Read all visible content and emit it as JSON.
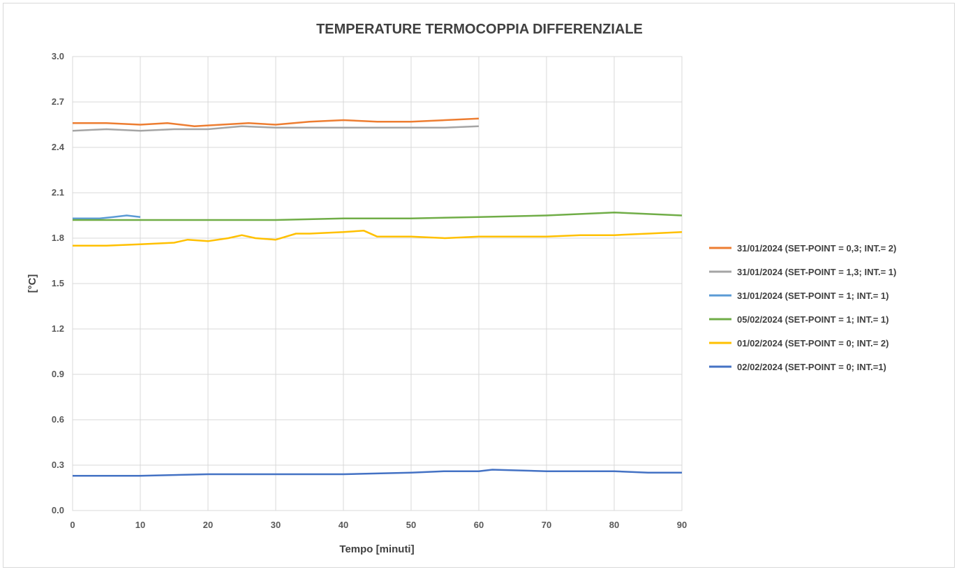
{
  "chart_data": {
    "type": "line",
    "title": "TEMPERATURE TERMOCOPPIA DIFFERENZIALE",
    "xlabel": "Tempo [minuti]",
    "ylabel": "[°C]",
    "xlim": [
      0,
      90
    ],
    "ylim": [
      0,
      3.0
    ],
    "x_ticks": [
      "0",
      "10",
      "20",
      "30",
      "40",
      "50",
      "60",
      "70",
      "80",
      "90"
    ],
    "y_ticks": [
      "0.0",
      "0.3",
      "0.6",
      "0.9",
      "1.2",
      "1.5",
      "1.8",
      "2.1",
      "2.4",
      "2.7",
      "3.0"
    ],
    "grid": true,
    "legend_position": "right",
    "series": [
      {
        "name": "31/01/2024 (SET-POINT = 0,3; INT.= 2)",
        "color": "#ED7D31",
        "x": [
          0,
          5,
          10,
          14,
          18,
          22,
          26,
          30,
          35,
          40,
          45,
          50,
          55,
          60
        ],
        "y": [
          2.56,
          2.56,
          2.55,
          2.56,
          2.54,
          2.55,
          2.56,
          2.55,
          2.57,
          2.58,
          2.57,
          2.57,
          2.58,
          2.59
        ]
      },
      {
        "name": "31/01/2024 (SET-POINT = 1,3; INT.= 1)",
        "color": "#A5A5A5",
        "x": [
          0,
          5,
          10,
          15,
          20,
          25,
          30,
          35,
          40,
          45,
          50,
          55,
          60
        ],
        "y": [
          2.51,
          2.52,
          2.51,
          2.52,
          2.52,
          2.54,
          2.53,
          2.53,
          2.53,
          2.53,
          2.53,
          2.53,
          2.54
        ]
      },
      {
        "name": "31/01/2024 (SET-POINT = 1; INT.= 1)",
        "color": "#5B9BD5",
        "x": [
          0,
          2,
          4,
          6,
          8,
          10
        ],
        "y": [
          1.93,
          1.93,
          1.93,
          1.94,
          1.95,
          1.94
        ]
      },
      {
        "name": "05/02/2024 (SET-POINT = 1; INT.= 1)",
        "color": "#70AD47",
        "x": [
          0,
          10,
          20,
          30,
          40,
          50,
          60,
          70,
          80,
          90
        ],
        "y": [
          1.92,
          1.92,
          1.92,
          1.92,
          1.93,
          1.93,
          1.94,
          1.95,
          1.97,
          1.95
        ]
      },
      {
        "name": "01/02/2024 (SET-POINT = 0; INT.= 2)",
        "color": "#FFC000",
        "x": [
          0,
          5,
          10,
          15,
          17,
          20,
          23,
          25,
          27,
          30,
          33,
          35,
          40,
          43,
          45,
          50,
          55,
          60,
          65,
          70,
          75,
          80,
          85,
          90
        ],
        "y": [
          1.75,
          1.75,
          1.76,
          1.77,
          1.79,
          1.78,
          1.8,
          1.82,
          1.8,
          1.79,
          1.83,
          1.83,
          1.84,
          1.85,
          1.81,
          1.81,
          1.8,
          1.81,
          1.81,
          1.81,
          1.82,
          1.82,
          1.83,
          1.84
        ]
      },
      {
        "name": "02/02/2024 (SET-POINT = 0; INT.=1)",
        "color": "#4472C4",
        "x": [
          0,
          10,
          20,
          30,
          40,
          50,
          55,
          60,
          62,
          70,
          80,
          85,
          90
        ],
        "y": [
          0.23,
          0.23,
          0.24,
          0.24,
          0.24,
          0.25,
          0.26,
          0.26,
          0.27,
          0.26,
          0.26,
          0.25,
          0.25
        ]
      }
    ]
  }
}
